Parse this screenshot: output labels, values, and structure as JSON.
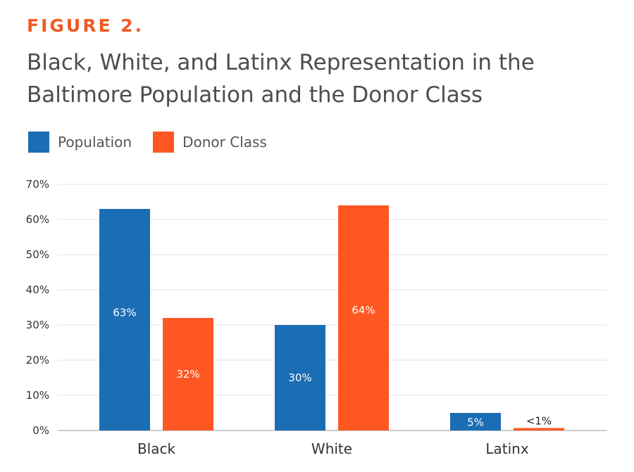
{
  "figure_label": "FIGURE 2.",
  "chart_data": {
    "type": "bar",
    "title": "Black, White, and Latinx Representation in the Baltimore Population and the Donor Class",
    "xlabel": "",
    "ylabel": "",
    "categories": [
      "Black",
      "White",
      "Latinx"
    ],
    "series": [
      {
        "name": "Population",
        "color": "#1b6db4",
        "values": [
          63,
          30,
          5
        ],
        "labels": [
          "63%",
          "30%",
          "5%"
        ]
      },
      {
        "name": "Donor Class",
        "color": "#ff5722",
        "values": [
          32,
          64,
          0.7
        ],
        "labels": [
          "32%",
          "64%",
          "<1%"
        ]
      }
    ],
    "ylim": [
      0,
      70
    ],
    "yticks": [
      "0%",
      "10%",
      "20%",
      "30%",
      "40%",
      "50%",
      "60%",
      "70%"
    ],
    "grid": true,
    "legend_position": "top-left"
  }
}
